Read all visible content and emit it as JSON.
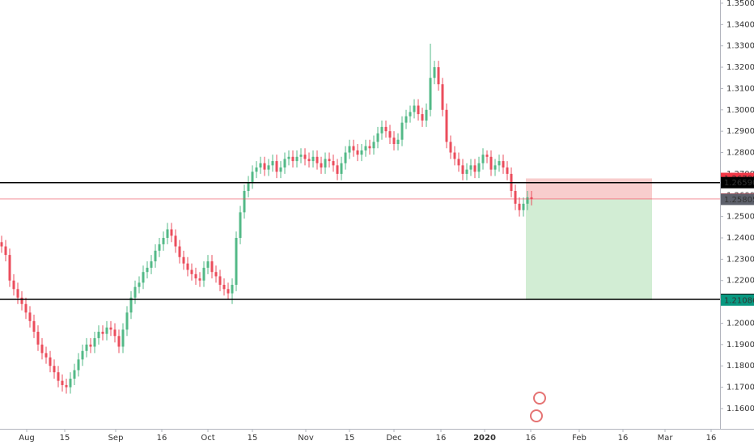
{
  "chart_data": {
    "type": "candlestick",
    "up_color": "#53b987",
    "down_color": "#eb4d5c",
    "xlim": [
      0,
      177.6
    ],
    "ylim": [
      1.1505,
      1.3515
    ],
    "yticks": [
      {
        "value": 1.16,
        "label": "1.16000"
      },
      {
        "value": 1.17,
        "label": "1.17000"
      },
      {
        "value": 1.18,
        "label": "1.18000"
      },
      {
        "value": 1.19,
        "label": "1.19000"
      },
      {
        "value": 1.2,
        "label": "1.20000"
      },
      {
        "value": 1.21,
        "label": "1.21000"
      },
      {
        "value": 1.22,
        "label": "1.22000"
      },
      {
        "value": 1.23,
        "label": "1.23000"
      },
      {
        "value": 1.24,
        "label": "1.24000"
      },
      {
        "value": 1.25,
        "label": "1.25000"
      },
      {
        "value": 1.26,
        "label": "1.26000"
      },
      {
        "value": 1.27,
        "label": "1.27000"
      },
      {
        "value": 1.28,
        "label": "1.28000"
      },
      {
        "value": 1.29,
        "label": "1.29000"
      },
      {
        "value": 1.3,
        "label": "1.30000"
      },
      {
        "value": 1.31,
        "label": "1.31000"
      },
      {
        "value": 1.32,
        "label": "1.32000"
      },
      {
        "value": 1.33,
        "label": "1.33000"
      },
      {
        "value": 1.34,
        "label": "1.34000"
      },
      {
        "value": 1.35,
        "label": "1.35000"
      }
    ],
    "xticks": [
      {
        "value": 6.2,
        "label": "Aug"
      },
      {
        "value": 15.6,
        "label": "15"
      },
      {
        "value": 28.2,
        "label": "Sep"
      },
      {
        "value": 39.6,
        "label": "16"
      },
      {
        "value": 51,
        "label": "Oct"
      },
      {
        "value": 62,
        "label": "15"
      },
      {
        "value": 75.2,
        "label": "Nov"
      },
      {
        "value": 86,
        "label": "15"
      },
      {
        "value": 97,
        "label": "Dec"
      },
      {
        "value": 108.6,
        "label": "16"
      },
      {
        "value": 119.4,
        "label": "2020"
      },
      {
        "value": 130.8,
        "label": "16"
      },
      {
        "value": 142.8,
        "label": "Feb"
      },
      {
        "value": 153.6,
        "label": "16"
      },
      {
        "value": 164,
        "label": "Mar"
      },
      {
        "value": 175.4,
        "label": "16"
      }
    ],
    "candles": {
      "open": [
        1.238,
        1.236,
        1.232,
        1.22,
        1.216,
        1.212,
        1.209,
        1.205,
        1.201,
        1.196,
        1.19,
        1.186,
        1.184,
        1.18,
        1.177,
        1.173,
        1.171,
        1.17,
        1.174,
        1.178,
        1.183,
        1.187,
        1.19,
        1.189,
        1.193,
        1.196,
        1.195,
        1.198,
        1.197,
        1.194,
        1.189,
        1.197,
        1.205,
        1.212,
        1.217,
        1.219,
        1.224,
        1.226,
        1.229,
        1.234,
        1.237,
        1.24,
        1.244,
        1.241,
        1.236,
        1.231,
        1.228,
        1.225,
        1.223,
        1.221,
        1.22,
        1.226,
        1.229,
        1.224,
        1.222,
        1.218,
        1.216,
        1.214,
        1.218,
        1.24,
        1.252,
        1.262,
        1.266,
        1.271,
        1.273,
        1.275,
        1.272,
        1.274,
        1.276,
        1.271,
        1.273,
        1.277,
        1.278,
        1.276,
        1.278,
        1.279,
        1.277,
        1.276,
        1.278,
        1.275,
        1.273,
        1.277,
        1.276,
        1.274,
        1.27,
        1.275,
        1.28,
        1.283,
        1.281,
        1.279,
        1.281,
        1.283,
        1.282,
        1.285,
        1.289,
        1.292,
        1.29,
        1.287,
        1.284,
        1.286,
        1.294,
        1.297,
        1.299,
        1.302,
        1.298,
        1.295,
        1.3,
        1.315,
        1.32,
        1.312,
        1.3,
        1.285,
        1.28,
        1.277,
        1.274,
        1.27,
        1.272,
        1.274,
        1.271,
        1.275,
        1.279,
        1.278,
        1.272,
        1.274,
        1.276,
        1.273,
        1.27,
        1.262,
        1.256,
        1.253,
        1.256,
        1.259
      ],
      "high": [
        1.241,
        1.239,
        1.235,
        1.223,
        1.219,
        1.215,
        1.212,
        1.208,
        1.204,
        1.199,
        1.193,
        1.189,
        1.187,
        1.183,
        1.18,
        1.176,
        1.174,
        1.177,
        1.181,
        1.186,
        1.19,
        1.193,
        1.193,
        1.196,
        1.199,
        1.199,
        1.201,
        1.201,
        1.2,
        1.197,
        1.2,
        1.208,
        1.215,
        1.22,
        1.222,
        1.227,
        1.229,
        1.232,
        1.237,
        1.24,
        1.243,
        1.247,
        1.247,
        1.244,
        1.239,
        1.234,
        1.231,
        1.228,
        1.226,
        1.224,
        1.229,
        1.232,
        1.232,
        1.227,
        1.225,
        1.221,
        1.219,
        1.221,
        1.243,
        1.255,
        1.265,
        1.269,
        1.274,
        1.276,
        1.278,
        1.278,
        1.277,
        1.279,
        1.279,
        1.276,
        1.28,
        1.281,
        1.281,
        1.281,
        1.282,
        1.282,
        1.28,
        1.281,
        1.281,
        1.278,
        1.28,
        1.28,
        1.279,
        1.277,
        1.278,
        1.283,
        1.286,
        1.286,
        1.284,
        1.284,
        1.286,
        1.286,
        1.288,
        1.292,
        1.295,
        1.295,
        1.293,
        1.29,
        1.289,
        1.297,
        1.3,
        1.302,
        1.305,
        1.305,
        1.301,
        1.303,
        1.331,
        1.323,
        1.323,
        1.315,
        1.303,
        1.288,
        1.283,
        1.28,
        1.277,
        1.275,
        1.277,
        1.277,
        1.278,
        1.282,
        1.281,
        1.281,
        1.277,
        1.279,
        1.279,
        1.276,
        1.273,
        1.265,
        1.259,
        1.259,
        1.262,
        1.262
      ],
      "low": [
        1.233,
        1.229,
        1.217,
        1.213,
        1.209,
        1.206,
        1.202,
        1.198,
        1.193,
        1.187,
        1.183,
        1.181,
        1.177,
        1.174,
        1.17,
        1.168,
        1.167,
        1.167,
        1.171,
        1.175,
        1.18,
        1.184,
        1.186,
        1.186,
        1.19,
        1.192,
        1.192,
        1.194,
        1.191,
        1.186,
        1.186,
        1.194,
        1.202,
        1.209,
        1.214,
        1.216,
        1.221,
        1.223,
        1.226,
        1.231,
        1.234,
        1.237,
        1.238,
        1.233,
        1.228,
        1.225,
        1.222,
        1.22,
        1.218,
        1.217,
        1.217,
        1.223,
        1.221,
        1.219,
        1.215,
        1.213,
        1.211,
        1.209,
        1.215,
        1.237,
        1.249,
        1.259,
        1.263,
        1.268,
        1.27,
        1.269,
        1.269,
        1.271,
        1.268,
        1.268,
        1.27,
        1.274,
        1.273,
        1.273,
        1.275,
        1.274,
        1.273,
        1.273,
        1.272,
        1.27,
        1.27,
        1.273,
        1.271,
        1.267,
        1.267,
        1.272,
        1.277,
        1.278,
        1.276,
        1.276,
        1.278,
        1.279,
        1.279,
        1.282,
        1.286,
        1.287,
        1.284,
        1.281,
        1.281,
        1.283,
        1.291,
        1.294,
        1.296,
        1.295,
        1.292,
        1.292,
        1.297,
        1.312,
        1.309,
        1.297,
        1.282,
        1.277,
        1.274,
        1.271,
        1.267,
        1.267,
        1.269,
        1.268,
        1.268,
        1.272,
        1.275,
        1.269,
        1.269,
        1.271,
        1.27,
        1.267,
        1.259,
        1.253,
        1.25,
        1.25,
        1.253,
        1.2552
      ],
      "close": [
        1.236,
        1.232,
        1.22,
        1.216,
        1.212,
        1.209,
        1.205,
        1.201,
        1.196,
        1.19,
        1.186,
        1.184,
        1.18,
        1.177,
        1.173,
        1.171,
        1.17,
        1.174,
        1.178,
        1.183,
        1.187,
        1.19,
        1.189,
        1.193,
        1.196,
        1.195,
        1.198,
        1.197,
        1.194,
        1.189,
        1.197,
        1.205,
        1.212,
        1.217,
        1.219,
        1.224,
        1.226,
        1.229,
        1.234,
        1.237,
        1.24,
        1.244,
        1.241,
        1.236,
        1.231,
        1.228,
        1.225,
        1.223,
        1.221,
        1.22,
        1.226,
        1.229,
        1.224,
        1.222,
        1.218,
        1.216,
        1.214,
        1.218,
        1.24,
        1.252,
        1.262,
        1.266,
        1.271,
        1.273,
        1.275,
        1.272,
        1.274,
        1.276,
        1.271,
        1.273,
        1.277,
        1.278,
        1.276,
        1.278,
        1.279,
        1.277,
        1.276,
        1.278,
        1.275,
        1.273,
        1.277,
        1.276,
        1.274,
        1.27,
        1.275,
        1.28,
        1.283,
        1.281,
        1.279,
        1.281,
        1.283,
        1.282,
        1.285,
        1.289,
        1.292,
        1.29,
        1.287,
        1.284,
        1.286,
        1.294,
        1.297,
        1.299,
        1.302,
        1.298,
        1.295,
        1.3,
        1.315,
        1.32,
        1.312,
        1.3,
        1.285,
        1.28,
        1.277,
        1.274,
        1.27,
        1.272,
        1.274,
        1.271,
        1.275,
        1.279,
        1.278,
        1.272,
        1.274,
        1.276,
        1.273,
        1.27,
        1.262,
        1.256,
        1.253,
        1.256,
        1.259,
        1.2582
      ]
    },
    "horizontal_lines": [
      {
        "value": 1.2659,
        "label": "1.26590",
        "color": "#000000"
      },
      {
        "value": 1.21119,
        "label": "1.21119",
        "color": "#000000"
      }
    ],
    "current_price": {
      "value": 1.25823,
      "label": "1.25823",
      "color": "#eb4d5c"
    },
    "position": {
      "start": 129.6,
      "end": 160.8,
      "stop": {
        "value": 1.26788,
        "label": "1.26788",
        "color": "#f23645"
      },
      "entry": {
        "value": 1.25805,
        "label": "1.25805",
        "color": "#5d606b"
      },
      "target": {
        "value": 1.21086,
        "label": "1.21086",
        "color": "#089981"
      },
      "stop_fill": "#f7c4c4",
      "target_fill": "#cdebcf"
    }
  }
}
